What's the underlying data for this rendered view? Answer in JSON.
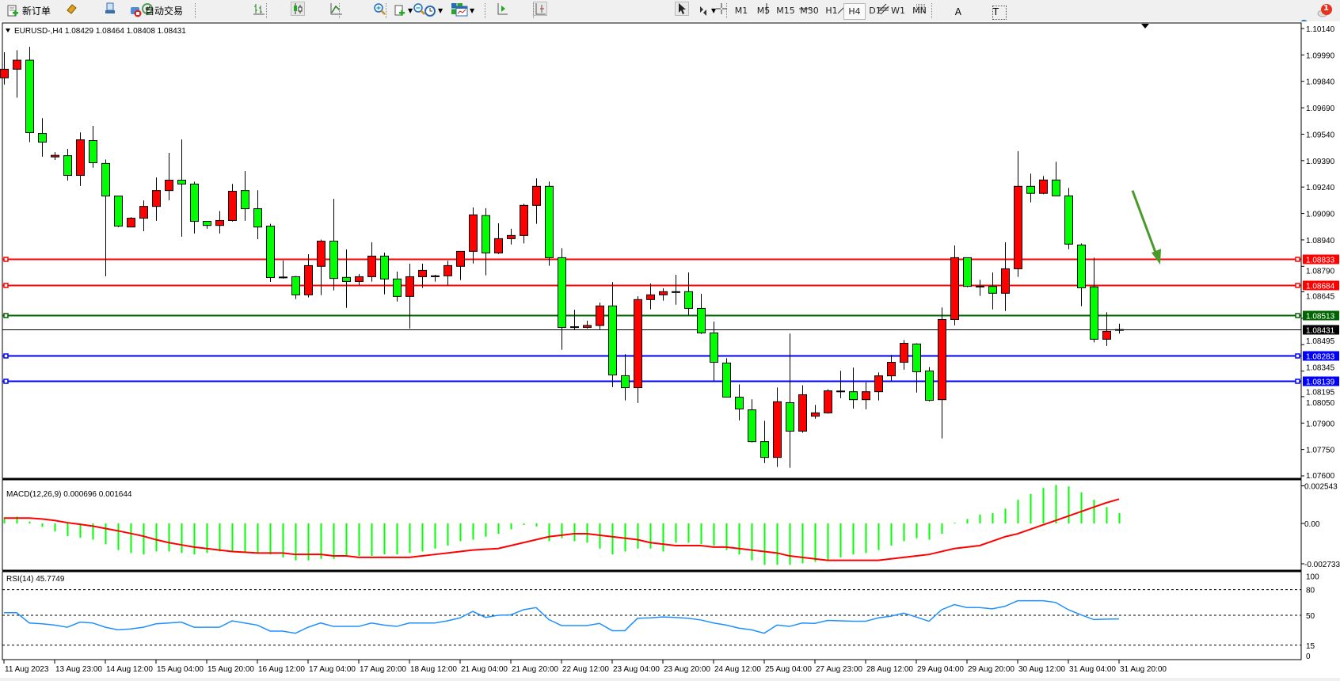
{
  "toolbar": {
    "new_order_label": "新订单",
    "auto_trading_label": "自动交易",
    "timeframes": [
      "M1",
      "M5",
      "M15",
      "M30",
      "H1",
      "H4",
      "D1",
      "W1",
      "MN"
    ],
    "active_timeframe": "H4",
    "notification_count": "1",
    "tool_icons": [
      "bar-chart-icon",
      "candlestick-icon",
      "line-chart-icon",
      "zoom-in-icon",
      "zoom-out-icon",
      "tile-windows-icon",
      "auto-scroll-icon",
      "chart-shift-icon",
      "indicators-icon",
      "periods-icon",
      "templates-icon",
      "cursor-icon",
      "crosshair-icon",
      "vertical-line-icon",
      "horizontal-line-icon",
      "trendline-icon",
      "equidistant-channel-icon",
      "fibonacci-icon",
      "text-icon",
      "text-label-icon",
      "arrows-icon"
    ]
  },
  "chart_info": {
    "symbol_header": "EURUSD-,H4  1.08429 1.08464 1.08408 1.08431"
  },
  "colors": {
    "bull_candle": "#ff0000",
    "bear_candle": "#00ff00",
    "resistance_line": "#ff0000",
    "pivot_line": "#006400",
    "support_line": "#0000ff",
    "macd_histogram": "#00ff00",
    "macd_signal": "#ff0000",
    "rsi_line": "#1e90ff",
    "arrow": "#4a9a2a"
  },
  "chart_data": [
    {
      "type": "candlestick",
      "title": "EURUSD-,H4",
      "ohlc_format": [
        "open",
        "high",
        "low",
        "close"
      ],
      "ylim": [
        1.076,
        1.1014
      ],
      "y_ticks": [
        "1.10140",
        "1.09990",
        "1.09840",
        "1.09690",
        "1.09540",
        "1.09390",
        "1.09240",
        "1.09090",
        "1.08940",
        "1.08790",
        "1.08645",
        "1.08495",
        "1.08345",
        "1.08195",
        "1.08050",
        "1.07900",
        "1.07750",
        "1.07600"
      ],
      "x_ticks": [
        "11 Aug 2023",
        "13 Aug 23:00",
        "14 Aug 12:00",
        "15 Aug 04:00",
        "15 Aug 20:00",
        "16 Aug 12:00",
        "17 Aug 04:00",
        "17 Aug 20:00",
        "18 Aug 12:00",
        "21 Aug 04:00",
        "21 Aug 20:00",
        "22 Aug 12:00",
        "23 Aug 04:00",
        "23 Aug 20:00",
        "24 Aug 12:00",
        "25 Aug 04:00",
        "27 Aug 23:00",
        "28 Aug 12:00",
        "29 Aug 04:00",
        "29 Aug 20:00",
        "30 Aug 12:00",
        "31 Aug 04:00",
        "31 Aug 20:00"
      ],
      "bars_per_tick": 4,
      "candles": [
        [
          1.0986,
          1.10005,
          1.09822,
          1.09909
        ],
        [
          1.09909,
          1.10017,
          1.09747,
          1.0996
        ],
        [
          1.0996,
          1.10036,
          1.09495,
          1.09549
        ],
        [
          1.09544,
          1.09631,
          1.09412,
          1.09495
        ],
        [
          1.09411,
          1.09438,
          1.09394,
          1.0942
        ],
        [
          1.09418,
          1.09456,
          1.09277,
          1.09306
        ],
        [
          1.09306,
          1.0955,
          1.09246,
          1.09508
        ],
        [
          1.09504,
          1.09587,
          1.0935,
          1.09378
        ],
        [
          1.09374,
          1.09396,
          1.08733,
          1.09189
        ],
        [
          1.09189,
          1.09189,
          1.09012,
          1.09018
        ],
        [
          1.09013,
          1.09069,
          1.09013,
          1.09063
        ],
        [
          1.09063,
          1.09164,
          1.08989,
          1.0913
        ],
        [
          1.0913,
          1.09294,
          1.09048,
          1.0922
        ],
        [
          1.0922,
          1.09434,
          1.09165,
          1.09279
        ],
        [
          1.09279,
          1.0951,
          1.08958,
          1.09257
        ],
        [
          1.09257,
          1.0927,
          1.08976,
          1.09045
        ],
        [
          1.09045,
          1.09045,
          1.09003,
          1.09022
        ],
        [
          1.09022,
          1.09104,
          1.08976,
          1.0905
        ],
        [
          1.0905,
          1.09258,
          1.09044,
          1.09216
        ],
        [
          1.0922,
          1.0933,
          1.09048,
          1.09117
        ],
        [
          1.09117,
          1.09222,
          1.08944,
          1.09013
        ],
        [
          1.09018,
          1.09031,
          1.08702,
          1.08726
        ],
        [
          1.08729,
          1.08823,
          1.0872,
          1.08728
        ],
        [
          1.08731,
          1.08735,
          1.08604,
          1.08628
        ],
        [
          1.08628,
          1.08858,
          1.08613,
          1.08794
        ],
        [
          1.0879,
          1.08942,
          1.08626,
          1.08933
        ],
        [
          1.08933,
          1.09173,
          1.08653,
          1.08721
        ],
        [
          1.08727,
          1.08886,
          1.08554,
          1.08704
        ],
        [
          1.08704,
          1.08746,
          1.08683,
          1.08731
        ],
        [
          1.08731,
          1.08926,
          1.08703,
          1.08848
        ],
        [
          1.08848,
          1.08868,
          1.08631,
          1.08718
        ],
        [
          1.08718,
          1.0876,
          1.0859,
          1.08619
        ],
        [
          1.08619,
          1.08805,
          1.08437,
          1.08731
        ],
        [
          1.08731,
          1.08805,
          1.08667,
          1.08767
        ],
        [
          1.08731,
          1.08742,
          1.08703,
          1.08736
        ],
        [
          1.08736,
          1.08821,
          1.08682,
          1.08794
        ],
        [
          1.0879,
          1.08875,
          1.08712,
          1.08875
        ],
        [
          1.08875,
          1.09124,
          1.08806,
          1.09082
        ],
        [
          1.09078,
          1.0912,
          1.08739,
          1.08866
        ],
        [
          1.08866,
          1.09034,
          1.0886,
          1.08947
        ],
        [
          1.08947,
          1.09003,
          1.08914,
          1.08965
        ],
        [
          1.08965,
          1.09145,
          1.0892,
          1.09136
        ],
        [
          1.09136,
          1.09289,
          1.09031,
          1.09244
        ],
        [
          1.09244,
          1.09271,
          1.08793,
          1.08839
        ],
        [
          1.08839,
          1.08893,
          1.08316,
          1.08443
        ],
        [
          1.08447,
          1.08543,
          1.08428,
          1.08446
        ],
        [
          1.08443,
          1.08481,
          1.08436,
          1.08454
        ],
        [
          1.08454,
          1.08584,
          1.08433,
          1.08565
        ],
        [
          1.08565,
          1.08701,
          1.08104,
          1.08173
        ],
        [
          1.08169,
          1.08292,
          1.08029,
          1.08101
        ],
        [
          1.08101,
          1.0862,
          1.08014,
          1.08601
        ],
        [
          1.08601,
          1.08692,
          1.08545,
          1.08628
        ],
        [
          1.08628,
          1.08665,
          1.08595,
          1.08646
        ],
        [
          1.08646,
          1.08742,
          1.08572,
          1.08645
        ],
        [
          1.08646,
          1.08755,
          1.08514,
          1.08551
        ],
        [
          1.08551,
          1.08634,
          1.08406,
          1.08412
        ],
        [
          1.08412,
          1.08476,
          1.08136,
          1.08245
        ],
        [
          1.08241,
          1.08268,
          1.08047,
          1.08047
        ],
        [
          1.08047,
          1.08119,
          1.07915,
          1.0798
        ],
        [
          1.07975,
          1.08035,
          1.0779,
          1.07795
        ],
        [
          1.07795,
          1.07913,
          1.07673,
          1.07705
        ],
        [
          1.07705,
          1.08102,
          1.07651,
          1.08021
        ],
        [
          1.08016,
          1.08408,
          1.07646,
          1.07854
        ],
        [
          1.07854,
          1.08115,
          1.07845,
          1.08061
        ],
        [
          1.07939,
          1.08003,
          1.07925,
          1.07958
        ],
        [
          1.07958,
          1.08092,
          1.07953,
          1.08083
        ],
        [
          1.08082,
          1.08197,
          1.08041,
          1.08081
        ],
        [
          1.08078,
          1.08215,
          1.07982,
          1.08033
        ],
        [
          1.08033,
          1.08131,
          1.07978,
          1.08078
        ],
        [
          1.08078,
          1.08188,
          1.08028,
          1.08168
        ],
        [
          1.08168,
          1.08287,
          1.08137,
          1.08245
        ],
        [
          1.08245,
          1.08371,
          1.08203,
          1.08353
        ],
        [
          1.08349,
          1.08353,
          1.08073,
          1.08191
        ],
        [
          1.08196,
          1.08218,
          1.08023,
          1.08029
        ],
        [
          1.08033,
          1.08556,
          1.07813,
          1.08488
        ],
        [
          1.08488,
          1.08908,
          1.08455,
          1.08839
        ],
        [
          1.08839,
          1.08839,
          1.08671,
          1.08676
        ],
        [
          1.08676,
          1.08713,
          1.08622,
          1.08677
        ],
        [
          1.08676,
          1.08755,
          1.08545,
          1.08637
        ],
        [
          1.08637,
          1.08926,
          1.08536,
          1.08776
        ],
        [
          1.08776,
          1.09444,
          1.0873,
          1.09244
        ],
        [
          1.09244,
          1.09316,
          1.09153,
          1.09204
        ],
        [
          1.09204,
          1.09302,
          1.09199,
          1.0928
        ],
        [
          1.0928,
          1.09383,
          1.0919,
          1.0919
        ],
        [
          1.0919,
          1.09235,
          1.08887,
          1.08916
        ],
        [
          1.08911,
          1.0892,
          1.08563,
          1.08668
        ],
        [
          1.08673,
          1.08839,
          1.08358,
          1.08376
        ],
        [
          1.08376,
          1.08529,
          1.08338,
          1.08421
        ],
        [
          1.08429,
          1.08464,
          1.08408,
          1.08431
        ]
      ],
      "horizontal_lines": [
        {
          "price": "1.08833",
          "role": "resistance"
        },
        {
          "price": "1.08684",
          "role": "resistance"
        },
        {
          "price": "1.08513",
          "role": "pivot"
        },
        {
          "price": "1.08431",
          "role": "current"
        },
        {
          "price": "1.08283",
          "role": "support"
        },
        {
          "price": "1.08139",
          "role": "support"
        }
      ],
      "annotation": {
        "type": "arrow",
        "direction": "down",
        "from_price": 1.0922,
        "to_price": 1.088
      }
    },
    {
      "type": "bar+line",
      "title": "MACD(12,26,9) 0.000696 0.001644",
      "ylim": [
        -0.002733,
        0.002543
      ],
      "y_ticks": [
        "0.002543",
        "0.00",
        "-0.002733"
      ],
      "histogram": [
        0.0004,
        0.00046,
        0.00013,
        -0.00023,
        -0.00054,
        -0.00086,
        -0.00096,
        -0.0011,
        -0.0014,
        -0.0018,
        -0.002,
        -0.0021,
        -0.0019,
        -0.0019,
        -0.002,
        -0.0021,
        -0.002,
        -0.0019,
        -0.0019,
        -0.0019,
        -0.002,
        -0.0021,
        -0.0023,
        -0.0025,
        -0.0025,
        -0.0024,
        -0.0024,
        -0.0022,
        -0.0022,
        -0.0022,
        -0.0021,
        -0.0021,
        -0.002,
        -0.0019,
        -0.0017,
        -0.0015,
        -0.0012,
        -0.0011,
        -0.0009,
        -0.0007,
        -0.0004,
        -0.0001,
        -0.0002,
        -0.0012,
        -0.001,
        -0.0012,
        -0.0013,
        -0.0017,
        -0.0021,
        -0.0019,
        -0.0017,
        -0.0017,
        -0.0019,
        -0.0013,
        -0.0013,
        -0.0014,
        -0.0015,
        -0.0018,
        -0.0021,
        -0.0025,
        -0.0028,
        -0.0028,
        -0.0028,
        -0.0027,
        -0.0026,
        -0.0025,
        -0.0023,
        -0.0021,
        -0.002,
        -0.0018,
        -0.0015,
        -0.0012,
        -0.001,
        -0.0011,
        -0.0007,
        0.0,
        0.0003,
        0.0006,
        0.0007,
        0.001,
        0.0016,
        0.002,
        0.0024,
        0.0026,
        0.0025,
        0.0021,
        0.0016,
        0.0011,
        0.000696
      ],
      "signal": [
        0.00036,
        0.00036,
        0.00036,
        0.0003,
        0.0002,
        5e-05,
        -6e-05,
        -0.00018,
        -0.00034,
        -0.0005,
        -0.00068,
        -0.00086,
        -0.0011,
        -0.0013,
        -0.00145,
        -0.0016,
        -0.0017,
        -0.0018,
        -0.0019,
        -0.00195,
        -0.002,
        -0.002,
        -0.002,
        -0.0021,
        -0.0021,
        -0.0021,
        -0.0022,
        -0.0022,
        -0.0023,
        -0.0023,
        -0.0023,
        -0.0023,
        -0.0023,
        -0.0022,
        -0.0021,
        -0.002,
        -0.0019,
        -0.0018,
        -0.00175,
        -0.0017,
        -0.0015,
        -0.0013,
        -0.0011,
        -0.0009,
        -0.0008,
        -0.0007,
        -0.0007,
        -0.0008,
        -0.0009,
        -0.001,
        -0.0011,
        -0.0013,
        -0.0014,
        -0.0015,
        -0.0015,
        -0.0015,
        -0.0016,
        -0.0016,
        -0.0017,
        -0.0018,
        -0.0019,
        -0.002,
        -0.0022,
        -0.0023,
        -0.0024,
        -0.0025,
        -0.0025,
        -0.0025,
        -0.0025,
        -0.0025,
        -0.0024,
        -0.0023,
        -0.0022,
        -0.0021,
        -0.0019,
        -0.0017,
        -0.0016,
        -0.0015,
        -0.0012,
        -0.0009,
        -0.0007,
        -0.0004,
        -0.0001,
        0.0002,
        0.0005,
        0.0008,
        0.0011,
        0.0014,
        0.001644
      ]
    },
    {
      "type": "line",
      "title": "RSI(14) 45.7749",
      "ylim": [
        0,
        100
      ],
      "y_ticks": [
        "100",
        "80",
        "50",
        "15",
        "0"
      ],
      "levels": [
        80,
        50,
        15
      ],
      "values": [
        53,
        53,
        41,
        40,
        38.5,
        36,
        42,
        41,
        36,
        33,
        34,
        36,
        40,
        41,
        42,
        36,
        36,
        36,
        43.5,
        41,
        38.5,
        31.5,
        31.5,
        29,
        36,
        41,
        37,
        37,
        37,
        41,
        38.5,
        37,
        41,
        41,
        41,
        43.5,
        47,
        54.5,
        47.5,
        50,
        50.5,
        56.5,
        59,
        45,
        38,
        38,
        38,
        40.5,
        32,
        32,
        46.5,
        47,
        48,
        47.5,
        46.5,
        44.5,
        41,
        38.5,
        35,
        33,
        29,
        38.5,
        37,
        41,
        40.5,
        44,
        43.5,
        43,
        43,
        47,
        49,
        52.5,
        48,
        43,
        56.5,
        62.5,
        59,
        59,
        57.5,
        60.5,
        67,
        67,
        67,
        65,
        56.5,
        50.5,
        45,
        45.5,
        45.7749
      ]
    }
  ]
}
